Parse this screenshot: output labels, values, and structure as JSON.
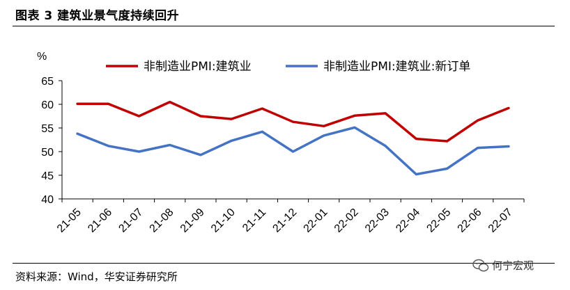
{
  "figure": {
    "title": "图表 3  建筑业景气度持续回升",
    "source": "资料来源：Wind，华安证券研究所",
    "watermark": "何宁宏观"
  },
  "chart_data": {
    "type": "line",
    "ylabel": "%",
    "ylim": [
      40,
      65
    ],
    "yticks": [
      40,
      45,
      50,
      55,
      60,
      65
    ],
    "grid": false,
    "legend_position": "top",
    "categories": [
      "21-05",
      "21-06",
      "21-07",
      "21-08",
      "21-09",
      "21-10",
      "21-11",
      "21-12",
      "22-01",
      "22-02",
      "22-03",
      "22-04",
      "22-05",
      "22-06",
      "22-07"
    ],
    "series": [
      {
        "name": "非制造业PMI:建筑业",
        "color": "#c00000",
        "values": [
          60.1,
          60.1,
          57.5,
          60.5,
          57.5,
          56.9,
          59.1,
          56.3,
          55.4,
          57.6,
          58.1,
          52.7,
          52.2,
          56.6,
          59.2
        ]
      },
      {
        "name": "非制造业PMI:建筑业:新订单",
        "color": "#4472c4",
        "values": [
          53.8,
          51.2,
          50.0,
          51.4,
          49.3,
          52.3,
          54.2,
          50.0,
          53.4,
          55.1,
          51.2,
          45.2,
          46.4,
          50.8,
          51.1
        ]
      }
    ]
  }
}
